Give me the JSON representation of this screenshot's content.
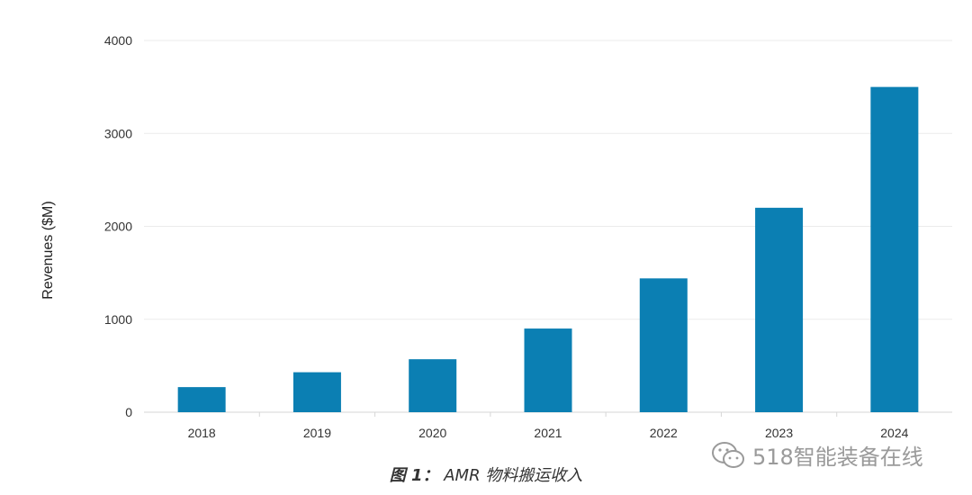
{
  "chart_data": {
    "type": "bar",
    "categories": [
      "2018",
      "2019",
      "2020",
      "2021",
      "2022",
      "2023",
      "2024"
    ],
    "values": [
      270,
      430,
      570,
      900,
      1440,
      2200,
      3500
    ],
    "ylabel": "Revenues ($M)",
    "ylim": [
      0,
      4000
    ],
    "yticks": [
      0,
      1000,
      2000,
      3000,
      4000
    ],
    "grid": true,
    "bar_color": "#0b7fb3"
  },
  "caption": {
    "figure": "图 1：",
    "text": "AMR 物料搬运收入"
  },
  "watermark": {
    "text": "518智能装备在线"
  }
}
